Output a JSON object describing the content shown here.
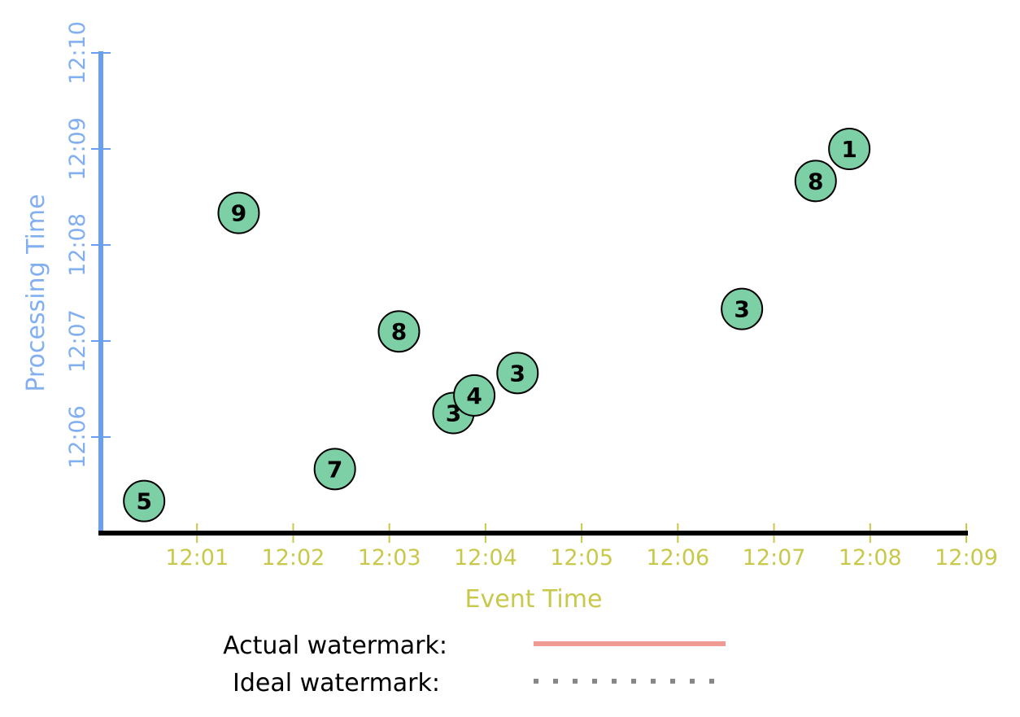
{
  "chart_data": {
    "type": "scatter",
    "xlabel": "Event Time",
    "ylabel": "Processing Time",
    "x_ticks": [
      "12:01",
      "12:02",
      "12:03",
      "12:04",
      "12:05",
      "12:06",
      "12:07",
      "12:08",
      "12:09"
    ],
    "y_ticks": [
      "12:06",
      "12:07",
      "12:08",
      "12:09",
      "12:10"
    ],
    "xlim": [
      "12:00",
      "12:09"
    ],
    "ylim": [
      "12:05",
      "12:10"
    ],
    "points": [
      {
        "x": "12:00:27",
        "y": "12:05:20",
        "value": "5"
      },
      {
        "x": "12:01:26",
        "y": "12:08:20",
        "value": "9"
      },
      {
        "x": "12:02:26",
        "y": "12:05:40",
        "value": "7"
      },
      {
        "x": "12:03:06",
        "y": "12:07:06",
        "value": "8"
      },
      {
        "x": "12:03:40",
        "y": "12:06:15",
        "value": "3"
      },
      {
        "x": "12:03:53",
        "y": "12:06:26",
        "value": "4"
      },
      {
        "x": "12:04:20",
        "y": "12:06:40",
        "value": "3"
      },
      {
        "x": "12:06:40",
        "y": "12:07:20",
        "value": "3"
      },
      {
        "x": "12:07:26",
        "y": "12:08:40",
        "value": "8"
      },
      {
        "x": "12:07:47",
        "y": "12:09:00",
        "value": "1"
      }
    ],
    "legend": [
      {
        "label": "Actual watermark:",
        "color": "#f09a94",
        "style": "solid"
      },
      {
        "label": "Ideal watermark:",
        "color": "#888888",
        "style": "dotted"
      }
    ],
    "colors": {
      "point_fill": "#7dcfa5",
      "x_axis": "#000000",
      "y_axis": "#6a9ef2",
      "x_text": "#c8c84a",
      "y_text": "#82aff2"
    }
  }
}
